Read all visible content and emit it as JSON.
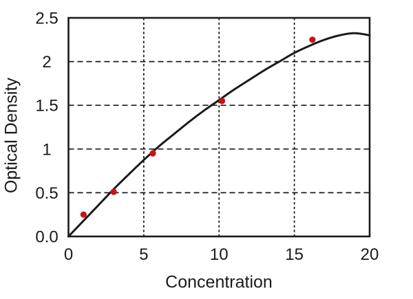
{
  "figure": {
    "background": "#ffffff",
    "frame_color": "#1a1a1a"
  },
  "chart_data": {
    "type": "scatter",
    "title": "",
    "xlabel": "Concentration",
    "ylabel": "Optical Density",
    "xlim": [
      0,
      20
    ],
    "ylim": [
      0,
      2.5
    ],
    "legend": "none",
    "grid": {
      "style": "dashed",
      "x_values": [
        5,
        10,
        15
      ],
      "y_values": [
        0.5,
        1,
        1.5,
        2
      ]
    },
    "xticks": {
      "values": [
        0,
        5,
        10,
        15,
        20
      ],
      "labels": [
        "0",
        "5",
        "10",
        "15",
        "20"
      ]
    },
    "yticks": {
      "values": [
        0,
        0.5,
        1,
        1.5,
        2,
        2.5
      ],
      "labels": [
        "0.0",
        "0.5",
        "1",
        "1.5",
        "2",
        "2.5"
      ]
    },
    "series": [
      {
        "name": "measured-points",
        "kind": "scatter",
        "color": "#cc1111",
        "marker_radius": 4.6,
        "points": [
          [
            1,
            0.25
          ],
          [
            3,
            0.51
          ],
          [
            5.6,
            0.95
          ],
          [
            10.2,
            1.55
          ],
          [
            16.2,
            2.25
          ]
        ]
      },
      {
        "name": "fitted-curve",
        "kind": "line",
        "color": "#1a1a1a",
        "width": 3,
        "points": [
          [
            0,
            0
          ],
          [
            1,
            0.18
          ],
          [
            2,
            0.36
          ],
          [
            3,
            0.54
          ],
          [
            4,
            0.71
          ],
          [
            5,
            0.875
          ],
          [
            6,
            1.03
          ],
          [
            7,
            1.17
          ],
          [
            8,
            1.31
          ],
          [
            9,
            1.44
          ],
          [
            10,
            1.56
          ],
          [
            11,
            1.68
          ],
          [
            12,
            1.79
          ],
          [
            13,
            1.9
          ],
          [
            14,
            2.0
          ],
          [
            15,
            2.1
          ],
          [
            16,
            2.18
          ],
          [
            17,
            2.25
          ],
          [
            18,
            2.3
          ],
          [
            19,
            2.325
          ],
          [
            20,
            2.3
          ]
        ]
      }
    ]
  }
}
